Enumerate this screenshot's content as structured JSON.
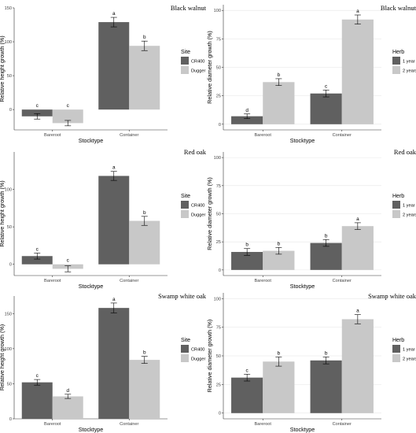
{
  "colors": {
    "dark": "#606060",
    "light": "#c8c8c8",
    "grid": "#e6e6e6",
    "axis": "#333333"
  },
  "chart_data": [
    {
      "type": "bar",
      "title": "Black walnut",
      "xlabel": "Stocktype",
      "ylabel": "Relative height growth (%)",
      "categories": [
        "Bareroot",
        "Container"
      ],
      "ylim": [
        -30,
        150
      ],
      "yticks": [
        0,
        50,
        100,
        150
      ],
      "legend_title": "Site",
      "legend_position": "right",
      "grid": "off",
      "series": [
        {
          "name": "CR400",
          "values": [
            -10,
            129
          ],
          "errors": [
            4,
            7
          ],
          "letters": [
            "c",
            "a"
          ]
        },
        {
          "name": "Dugger",
          "values": [
            -20,
            94
          ],
          "errors": [
            4,
            7
          ],
          "letters": [
            "c",
            "b"
          ]
        }
      ]
    },
    {
      "type": "bar",
      "title": "Black walnut",
      "xlabel": "Stocktype",
      "ylabel": "Relative diameter growth (%)",
      "categories": [
        "Bareroot",
        "Container"
      ],
      "ylim": [
        -5,
        105
      ],
      "yticks": [
        0,
        25,
        50,
        75,
        100
      ],
      "legend_title": "Herb",
      "legend_position": "right",
      "grid": "on",
      "series": [
        {
          "name": "1 year",
          "values": [
            7,
            27
          ],
          "errors": [
            2,
            3
          ],
          "letters": [
            "d",
            "c"
          ]
        },
        {
          "name": "2 years",
          "values": [
            37,
            92
          ],
          "errors": [
            3,
            4
          ],
          "letters": [
            "b",
            "a"
          ]
        }
      ]
    },
    {
      "type": "bar",
      "title": "Red oak",
      "xlabel": "Stocktype",
      "ylabel": "Relative height growth (%)",
      "categories": [
        "Bareroot",
        "Container"
      ],
      "ylim": [
        -15,
        150
      ],
      "yticks": [
        0,
        50,
        100
      ],
      "legend_title": "Site",
      "legend_position": "right",
      "grid": "off",
      "series": [
        {
          "name": "CR400",
          "values": [
            11,
            118
          ],
          "errors": [
            4,
            6
          ],
          "letters": [
            "c",
            "a"
          ]
        },
        {
          "name": "Dugger",
          "values": [
            -6,
            58
          ],
          "errors": [
            4,
            6
          ],
          "letters": [
            "c",
            "b"
          ]
        }
      ]
    },
    {
      "type": "bar",
      "title": "Red oak",
      "xlabel": "Stocktype",
      "ylabel": "Relative diameter growth (%)",
      "categories": [
        "Bareroot",
        "Container"
      ],
      "ylim": [
        -5,
        105
      ],
      "yticks": [
        0,
        25,
        50,
        75,
        100
      ],
      "legend_title": "Herb",
      "legend_position": "right",
      "grid": "on",
      "series": [
        {
          "name": "1 year",
          "values": [
            16,
            24
          ],
          "errors": [
            3,
            3
          ],
          "letters": [
            "b",
            "b"
          ]
        },
        {
          "name": "2 years",
          "values": [
            17,
            39
          ],
          "errors": [
            3,
            3
          ],
          "letters": [
            "b",
            "a"
          ]
        }
      ]
    },
    {
      "type": "bar",
      "title": "Swamp white oak",
      "xlabel": "Stocktype",
      "ylabel": "Relative height growth (%)",
      "categories": [
        "Bareroot",
        "Container"
      ],
      "ylim": [
        0,
        175
      ],
      "yticks": [
        0,
        50,
        100,
        150
      ],
      "legend_title": "Site",
      "legend_position": "right",
      "grid": "off",
      "series": [
        {
          "name": "CR400",
          "values": [
            52,
            158
          ],
          "errors": [
            4,
            7
          ],
          "letters": [
            "c",
            "a"
          ]
        },
        {
          "name": "Dugger",
          "values": [
            32,
            84
          ],
          "errors": [
            3,
            5
          ],
          "letters": [
            "d",
            "b"
          ]
        }
      ]
    },
    {
      "type": "bar",
      "title": "Swamp white oak",
      "xlabel": "Stocktype",
      "ylabel": "Relative diameter growth (%)",
      "categories": [
        "Bareroot",
        "Container"
      ],
      "ylim": [
        -5,
        105
      ],
      "yticks": [
        0,
        25,
        50,
        75,
        100
      ],
      "legend_title": "Herb",
      "legend_position": "right",
      "grid": "on",
      "series": [
        {
          "name": "1 year",
          "values": [
            31,
            46
          ],
          "errors": [
            3,
            3
          ],
          "letters": [
            "c",
            "b"
          ]
        },
        {
          "name": "2 years",
          "values": [
            45,
            82
          ],
          "errors": [
            4,
            4
          ],
          "letters": [
            "b",
            "a"
          ]
        }
      ]
    }
  ]
}
